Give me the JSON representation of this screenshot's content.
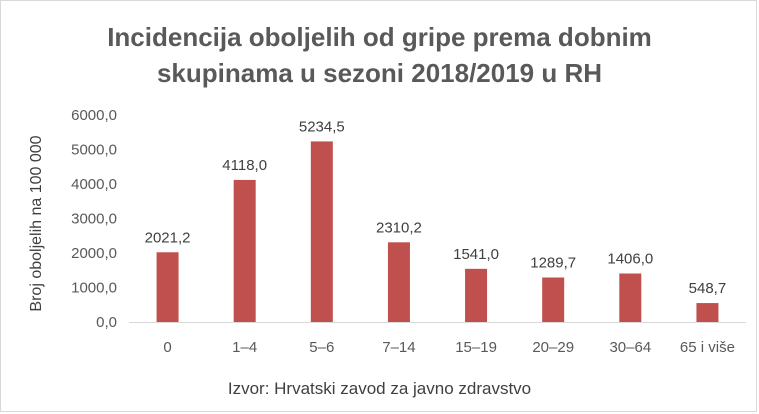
{
  "chart_data": {
    "type": "bar",
    "title_lines": [
      "Incidencija oboljelih od gripe prema dobnim",
      "skupinama u sezoni 2018/2019 u RH"
    ],
    "xlabel": "",
    "ylabel": "Broj oboljelih na 100 000",
    "categories": [
      "0",
      "1–4",
      "5–6",
      "7–14",
      "15–19",
      "20–29",
      "30–64",
      "65 i više"
    ],
    "values": [
      2021.2,
      4118.0,
      5234.5,
      2310.2,
      1541.0,
      1289.7,
      1406.0,
      548.7
    ],
    "data_labels": [
      "2021,2",
      "4118,0",
      "5234,5",
      "2310,2",
      "1541,0",
      "1289,7",
      "1406,0",
      "548,7"
    ],
    "ylim": [
      0,
      6000
    ],
    "yticks": [
      0,
      1000,
      2000,
      3000,
      4000,
      5000,
      6000
    ],
    "ytick_labels": [
      "0,0",
      "1000,0",
      "2000,0",
      "3000,0",
      "4000,0",
      "5000,0",
      "6000,0"
    ],
    "grid": false,
    "legend": "none",
    "colors": {
      "bar": "#c0504d",
      "axis": "#d9d9d9"
    }
  },
  "source_note": "Izvor: Hrvatski zavod za javno zdravstvo"
}
